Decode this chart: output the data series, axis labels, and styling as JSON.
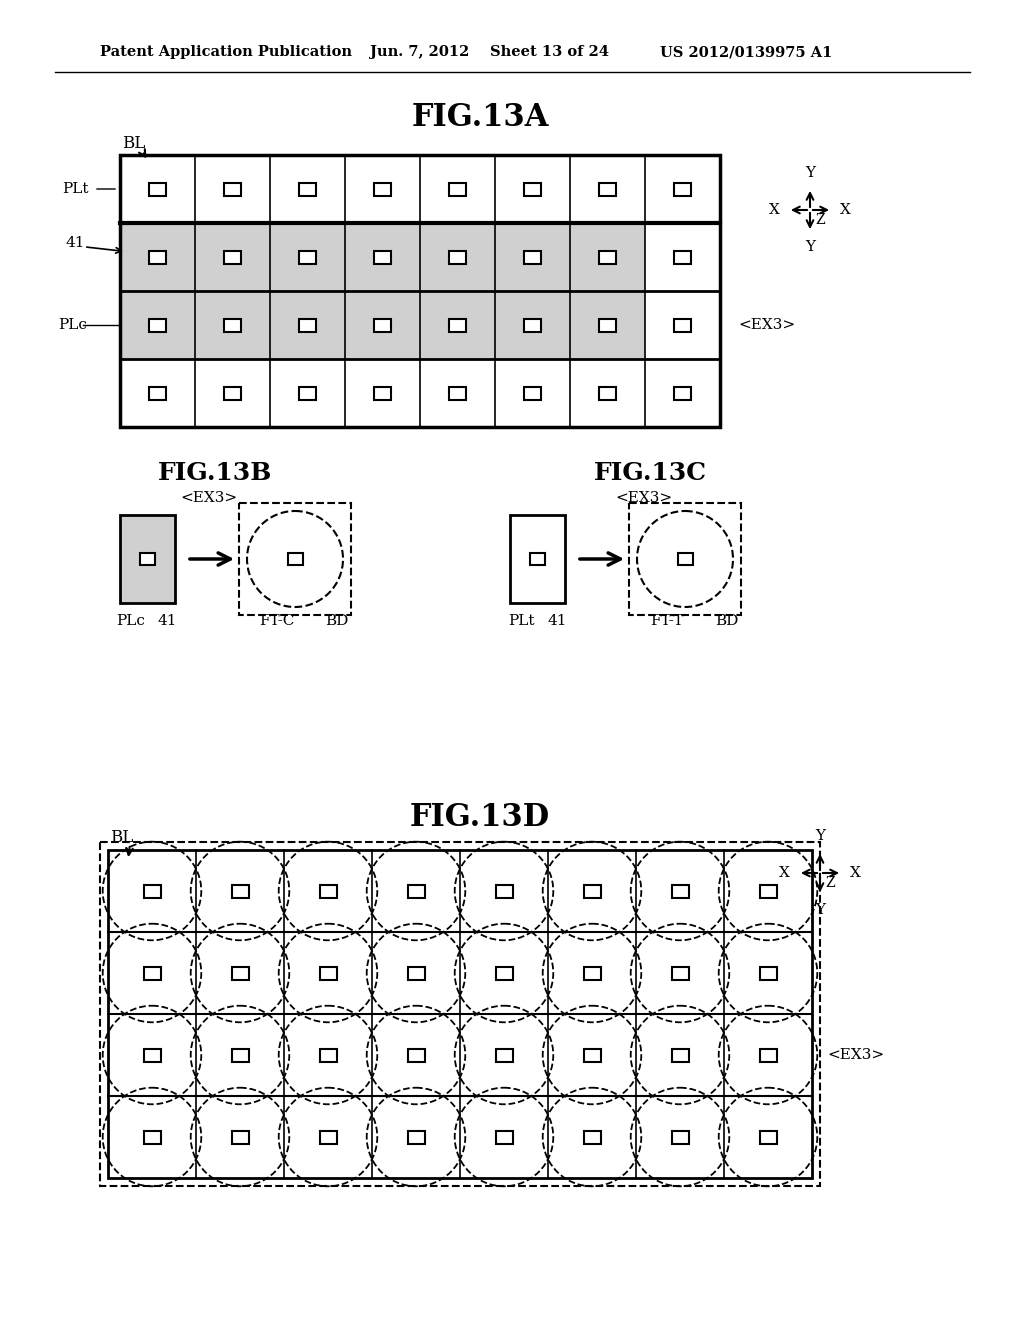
{
  "bg_color": "#ffffff",
  "header_text": "Patent Application Publication",
  "header_date": "Jun. 7, 2012",
  "header_sheet": "Sheet 13 of 24",
  "header_patent": "US 2012/0139975 A1",
  "fig13A_title": "FIG.13A",
  "fig13B_title": "FIG.13B",
  "fig13C_title": "FIG.13C",
  "fig13D_title": "FIG.13D",
  "text_color": "#000000",
  "shaded_color": "#d0d0d0"
}
